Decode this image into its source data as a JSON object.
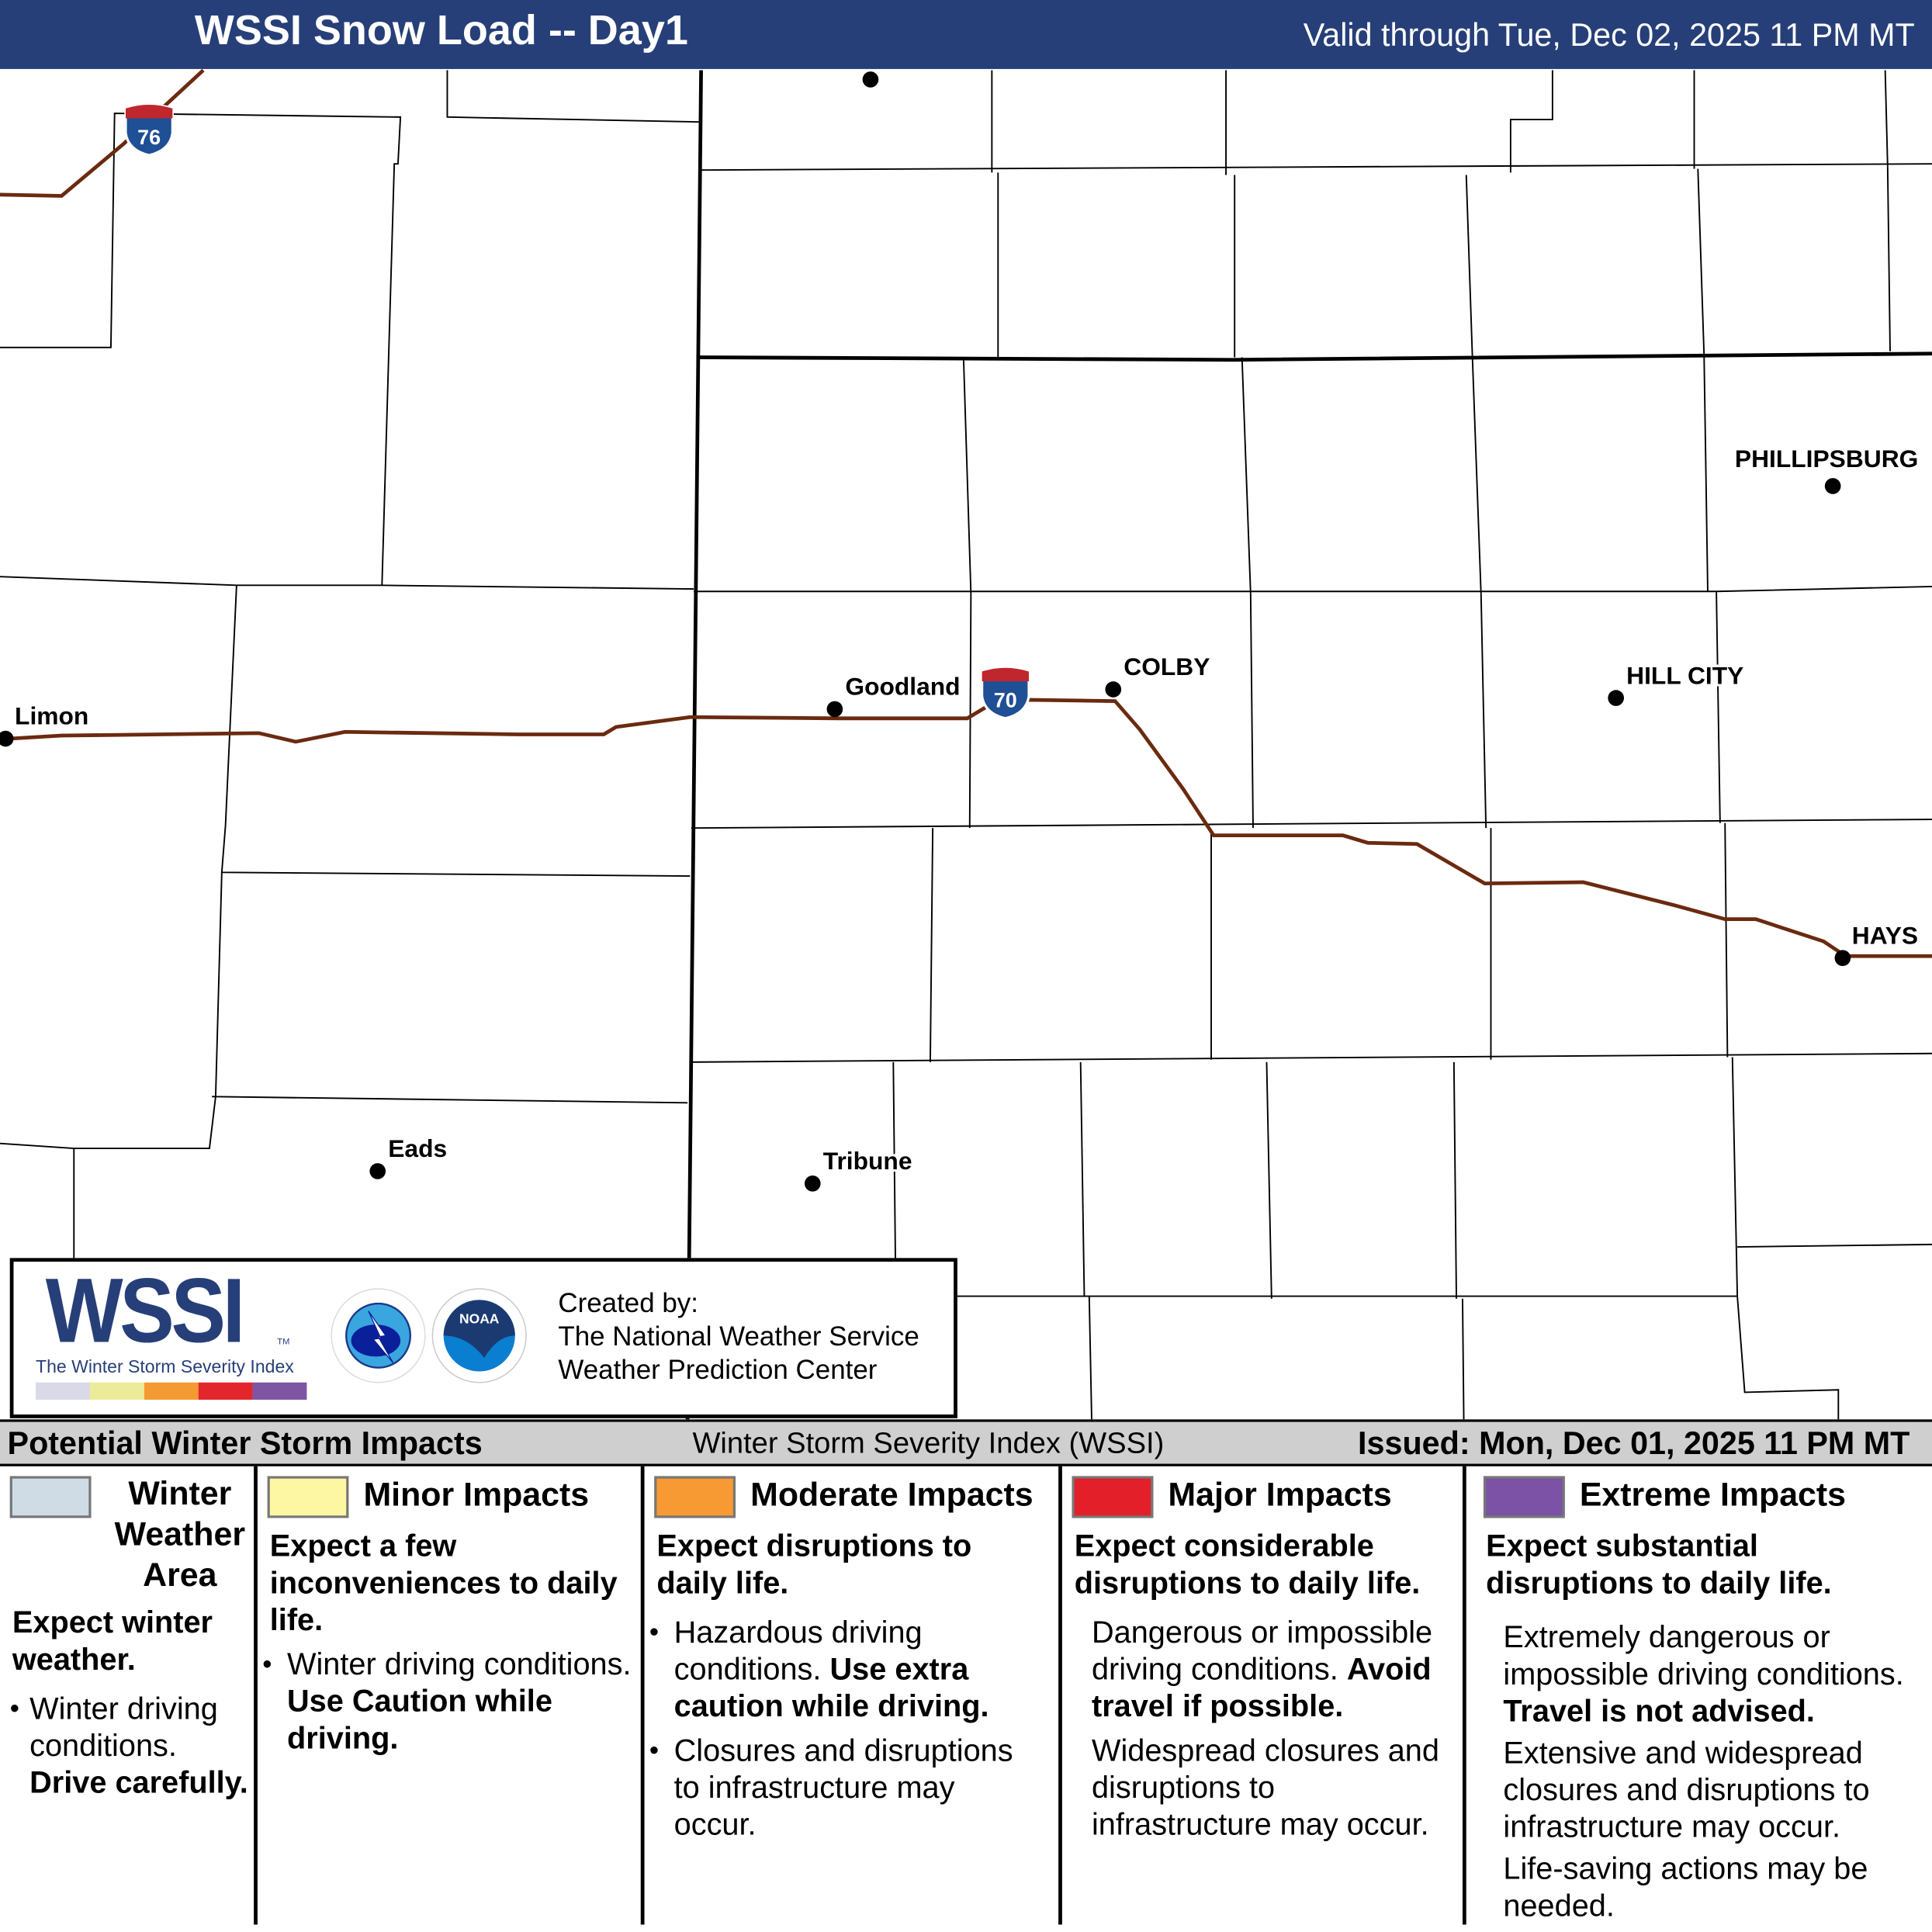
{
  "header": {
    "title": "WSSI Snow Load -- Day1",
    "valid": "Valid through Tue, Dec 02, 2025 11 PM MT"
  },
  "map": {
    "cities": [
      {
        "name": "Limon"
      },
      {
        "name": "Goodland"
      },
      {
        "name": "COLBY"
      },
      {
        "name": "PHILLIPSBURG"
      },
      {
        "name": "HILL CITY"
      },
      {
        "name": "HAYS"
      },
      {
        "name": "Eads"
      },
      {
        "name": "Tribune"
      }
    ],
    "shields": [
      {
        "route": "76"
      },
      {
        "route": "70"
      }
    ],
    "road_color": "#6b2a10"
  },
  "logo": {
    "wssi": "WSSI",
    "tm": "TM",
    "subtitle": "The Winter Storm Severity Index",
    "nws": "NATIONAL WEATHER SERVICE",
    "noaa": "NOAA",
    "created": [
      "Created by:",
      "The National Weather Service",
      "Weather Prediction Center"
    ],
    "colors": [
      "#d9d9e8",
      "#ecec98",
      "#f39a33",
      "#e3262c",
      "#7e55a3"
    ]
  },
  "legend": {
    "left": "Potential Winter Storm Impacts",
    "center": "Winter Storm Severity Index (WSSI)",
    "right": "Issued: Mon, Dec 01, 2025 11 PM MT",
    "categories": [
      {
        "title": "Winter Weather Area",
        "color": "#cfdce6",
        "summary": "Expect winter weather.",
        "detail": "Winter driving conditions.",
        "detail_bold": "Drive carefully."
      },
      {
        "title": "Minor Impacts",
        "color": "#fdf7a4",
        "summary": "Expect a few inconveniences to daily life.",
        "detail": "Winter driving conditions.",
        "detail_bold": "Use Caution while driving."
      },
      {
        "title": "Moderate Impacts",
        "color": "#f79a33",
        "summary": "Expect disruptions to daily life.",
        "detail": "Hazardous driving conditions.",
        "detail_bold": "Use extra caution while driving.",
        "detail2": "Closures and disruptions to infrastructure may occur."
      },
      {
        "title": "Major Impacts",
        "color": "#e3202a",
        "summary": "Expect considerable disruptions to daily life.",
        "detail": "Dangerous or impossible driving conditions.",
        "detail_bold": "Avoid travel if possible.",
        "detail2": "Widespread closures and disruptions to infrastructure may occur."
      },
      {
        "title": "Extreme Impacts",
        "color": "#7b52a5",
        "summary": "Expect substantial disruptions to daily life.",
        "detail": "Extremely dangerous or impossible driving conditions.",
        "detail_bold": "Travel is not advised.",
        "detail2": "Extensive and widespread closures and disruptions to infrastructure may occur.",
        "detail3": "Life-saving actions may be needed."
      }
    ]
  }
}
